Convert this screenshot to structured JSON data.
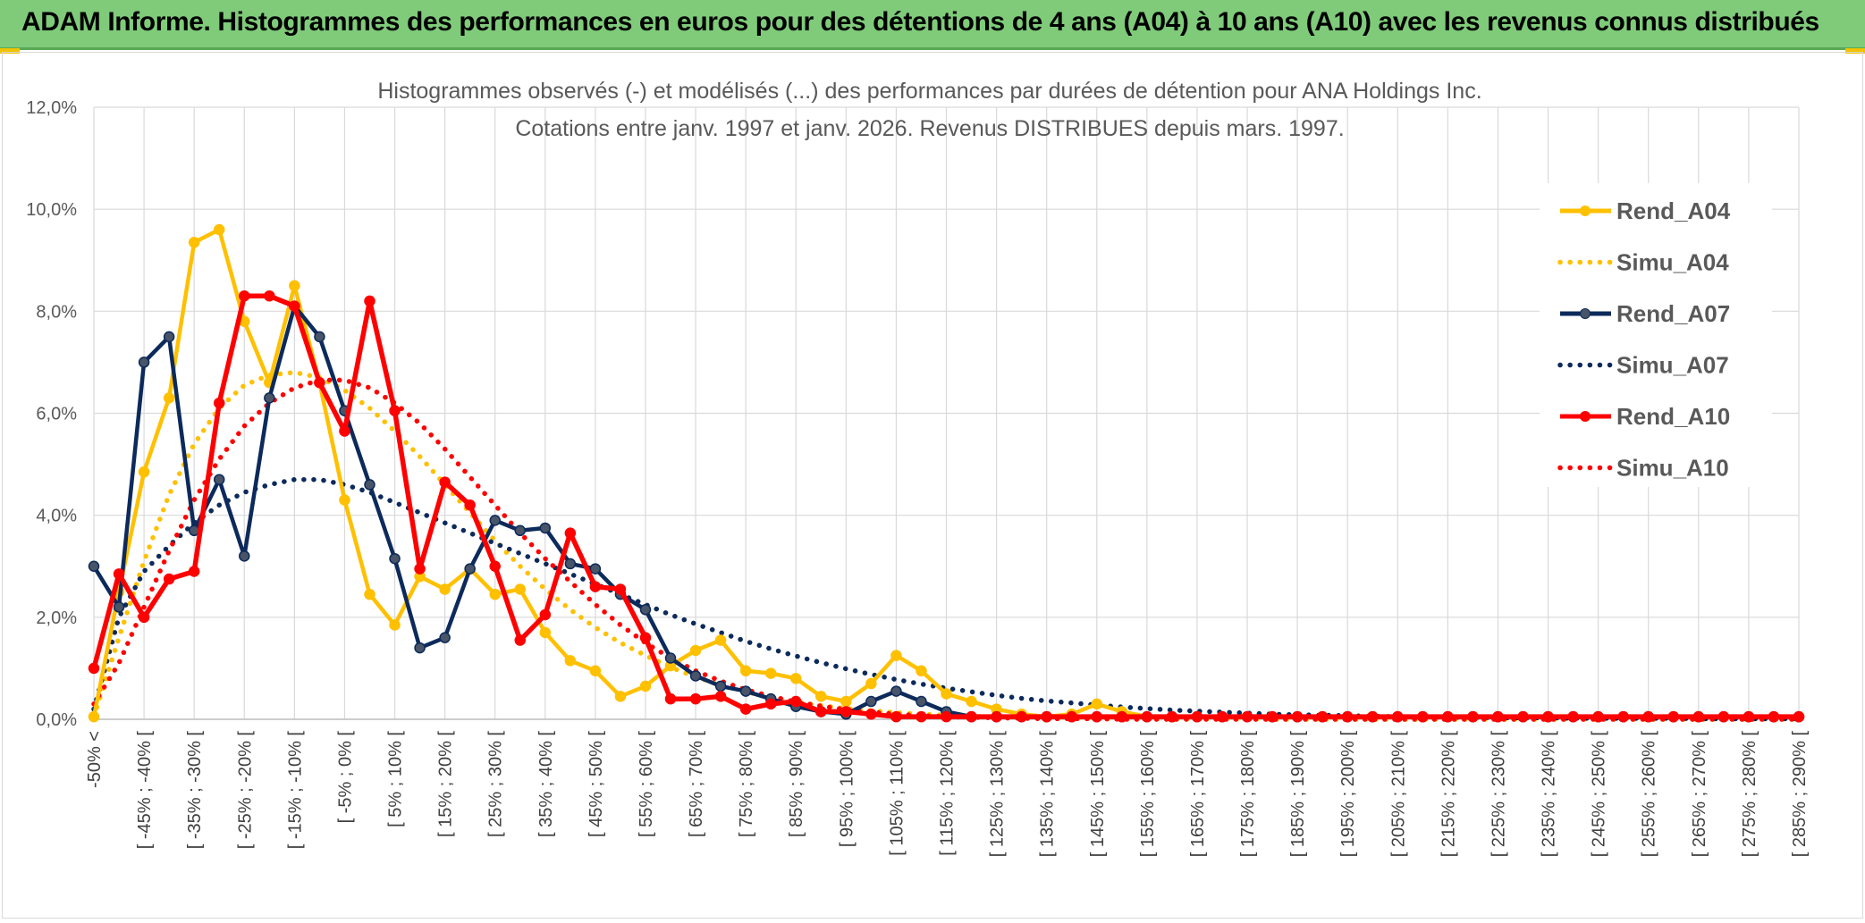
{
  "banner": {
    "title": "ADAM Informe. Histogrammes des performances en euros pour des détentions de 4 ans (A04) à 10 ans (A10) avec les revenus connus distribués"
  },
  "chart_data": {
    "type": "line",
    "title": "Histogrammes observés (-) et modélisés (...) des performances par durées de détention pour ANA Holdings Inc.",
    "subtitle": "Cotations entre janv. 1997 et janv. 2026. Revenus DISTRIBUES depuis mars. 1997.",
    "xlabel": "",
    "ylabel": "",
    "ylim": [
      0,
      12
    ],
    "yticks": [
      "0,0%",
      "2,0%",
      "4,0%",
      "6,0%",
      "8,0%",
      "10,0%",
      "12,0%"
    ],
    "grid": true,
    "legend_position": "right",
    "category_labels": [
      "-50% <",
      "[ -45% ; -40% [",
      "[ -35% ; -30% [",
      "[ -25% ; -20% [",
      "[ -15% ; -10% [",
      "[ -5% ; 0% [",
      "[ 5% ; 10% [",
      "[ 15% ; 20% [",
      "[ 25% ; 30% [",
      "[ 35% ; 40% [",
      "[ 45% ; 50% [",
      "[ 55% ; 60% [",
      "[ 65% ; 70% [",
      "[ 75% ; 80% [",
      "[ 85% ; 90% [",
      "[ 95% ; 100% [",
      "[ 105% ; 110% [",
      "[ 115% ; 120% [",
      "[ 125% ; 130% [",
      "[ 135% ; 140% [",
      "[ 145% ; 150% [",
      "[ 155% ; 160% [",
      "[ 165% ; 170% [",
      "[ 175% ; 180% [",
      "[ 185% ; 190% [",
      "[ 195% ; 200% [",
      "[ 205% ; 210% [",
      "[ 215% ; 220% [",
      "[ 225% ; 230% [",
      "[ 235% ; 240% [",
      "[ 245% ; 250% [",
      "[ 255% ; 260% [",
      "[ 265% ; 270% [",
      "[ 275% ; 280% [",
      "[ 285% ; 290% ["
    ],
    "n_points": 69,
    "series": [
      {
        "name": "Rend_A04",
        "color": "#ffc000",
        "style": "solid",
        "markers": true,
        "values": [
          0.05,
          2.5,
          4.85,
          6.3,
          9.35,
          9.6,
          7.8,
          6.6,
          8.5,
          6.6,
          4.3,
          2.45,
          1.85,
          2.8,
          2.55,
          2.95,
          2.45,
          2.55,
          1.7,
          1.15,
          0.95,
          0.45,
          0.65,
          1.05,
          1.35,
          1.55,
          0.95,
          0.9,
          0.8,
          0.45,
          0.35,
          0.7,
          1.25,
          0.95,
          0.5,
          0.35,
          0.2,
          0.1,
          0.05,
          0.1,
          0.3,
          0.15,
          0.05,
          0.05,
          0.05,
          0.05,
          0.05,
          0.05,
          0.05,
          0.05,
          0.05,
          0.05,
          0.05,
          0.05,
          0.05,
          0.05,
          0.05,
          0.05,
          0.05,
          0.05,
          0.05,
          0.05,
          0.05,
          0.05,
          0.05,
          0.05,
          0.05,
          0.05,
          0.05
        ]
      },
      {
        "name": "Simu_A04",
        "color": "#ffc000",
        "style": "dotted",
        "markers": false,
        "values": [
          0.05,
          1.6,
          3.1,
          4.4,
          5.4,
          6.1,
          6.55,
          6.75,
          6.8,
          6.7,
          6.45,
          6.1,
          5.65,
          5.15,
          4.6,
          4.05,
          3.5,
          3.0,
          2.55,
          2.15,
          1.8,
          1.5,
          1.25,
          1.02,
          0.83,
          0.67,
          0.54,
          0.43,
          0.34,
          0.27,
          0.21,
          0.17,
          0.13,
          0.1,
          0.08,
          0.06,
          0.05,
          0.04,
          0.03,
          0.02,
          0.02,
          0.01,
          0.01,
          0.01,
          0.01,
          0.01,
          0.01,
          0.0,
          0.0,
          0.0,
          0.0,
          0.0,
          0.0,
          0.0,
          0.0,
          0.0,
          0.0,
          0.0,
          0.0,
          0.0,
          0.0,
          0.0,
          0.0,
          0.0,
          0.0,
          0.0,
          0.0,
          0.0,
          0.0
        ]
      },
      {
        "name": "Rend_A07",
        "color": "#0c2a5b",
        "style": "solid",
        "markers": true,
        "values": [
          3.0,
          2.2,
          7.0,
          7.5,
          3.7,
          4.7,
          3.2,
          6.3,
          8.1,
          7.5,
          6.05,
          4.6,
          3.15,
          1.4,
          1.6,
          2.95,
          3.9,
          3.7,
          3.75,
          3.05,
          2.95,
          2.45,
          2.15,
          1.2,
          0.85,
          0.65,
          0.55,
          0.4,
          0.25,
          0.15,
          0.1,
          0.35,
          0.55,
          0.35,
          0.15,
          0.05,
          0.05,
          0.05,
          0.05,
          0.05,
          0.05,
          0.05,
          0.05,
          0.05,
          0.05,
          0.05,
          0.05,
          0.05,
          0.05,
          0.05,
          0.05,
          0.05,
          0.05,
          0.05,
          0.05,
          0.05,
          0.05,
          0.05,
          0.05,
          0.05,
          0.05,
          0.05,
          0.05,
          0.05,
          0.05,
          0.05,
          0.05,
          0.05,
          0.05
        ]
      },
      {
        "name": "Simu_A07",
        "color": "#0c2a5b",
        "style": "dotted",
        "markers": false,
        "values": [
          0.2,
          2.0,
          2.9,
          3.4,
          3.85,
          4.2,
          4.45,
          4.6,
          4.7,
          4.7,
          4.6,
          4.45,
          4.25,
          4.05,
          3.85,
          3.65,
          3.45,
          3.25,
          3.05,
          2.85,
          2.65,
          2.45,
          2.25,
          2.05,
          1.87,
          1.7,
          1.53,
          1.38,
          1.24,
          1.11,
          0.99,
          0.88,
          0.78,
          0.69,
          0.61,
          0.54,
          0.47,
          0.41,
          0.36,
          0.32,
          0.28,
          0.24,
          0.21,
          0.18,
          0.16,
          0.14,
          0.12,
          0.1,
          0.09,
          0.08,
          0.07,
          0.06,
          0.05,
          0.05,
          0.04,
          0.04,
          0.03,
          0.03,
          0.03,
          0.02,
          0.02,
          0.02,
          0.02,
          0.02,
          0.01,
          0.01,
          0.01,
          0.01,
          0.01
        ]
      },
      {
        "name": "Rend_A10",
        "color": "#ff0000",
        "style": "solid",
        "markers": true,
        "values": [
          1.0,
          2.85,
          2.0,
          2.75,
          2.9,
          6.2,
          8.3,
          8.3,
          8.1,
          6.6,
          5.65,
          8.2,
          6.05,
          2.95,
          4.65,
          4.2,
          3.0,
          1.55,
          2.05,
          3.65,
          2.6,
          2.55,
          1.6,
          0.4,
          0.4,
          0.45,
          0.2,
          0.3,
          0.35,
          0.15,
          0.15,
          0.1,
          0.05,
          0.05,
          0.05,
          0.05,
          0.05,
          0.05,
          0.05,
          0.05,
          0.05,
          0.05,
          0.05,
          0.05,
          0.05,
          0.05,
          0.05,
          0.05,
          0.05,
          0.05,
          0.05,
          0.05,
          0.05,
          0.05,
          0.05,
          0.05,
          0.05,
          0.05,
          0.05,
          0.05,
          0.05,
          0.05,
          0.05,
          0.05,
          0.05,
          0.05,
          0.05,
          0.05,
          0.05
        ]
      },
      {
        "name": "Simu_A10",
        "color": "#ff0000",
        "style": "dotted",
        "markers": false,
        "values": [
          0.3,
          1.1,
          2.2,
          3.3,
          4.3,
          5.1,
          5.75,
          6.2,
          6.5,
          6.65,
          6.65,
          6.5,
          6.2,
          5.8,
          5.3,
          4.75,
          4.2,
          3.65,
          3.15,
          2.7,
          2.25,
          1.85,
          1.5,
          1.2,
          0.95,
          0.75,
          0.58,
          0.45,
          0.34,
          0.26,
          0.19,
          0.14,
          0.1,
          0.07,
          0.05,
          0.04,
          0.03,
          0.02,
          0.01,
          0.01,
          0.01,
          0.0,
          0.0,
          0.0,
          0.0,
          0.0,
          0.0,
          0.0,
          0.0,
          0.0,
          0.0,
          0.0,
          0.0,
          0.0,
          0.0,
          0.0,
          0.0,
          0.0,
          0.0,
          0.0,
          0.0,
          0.0,
          0.0,
          0.0,
          0.0,
          0.0,
          0.0,
          0.0,
          0.0
        ]
      }
    ]
  }
}
